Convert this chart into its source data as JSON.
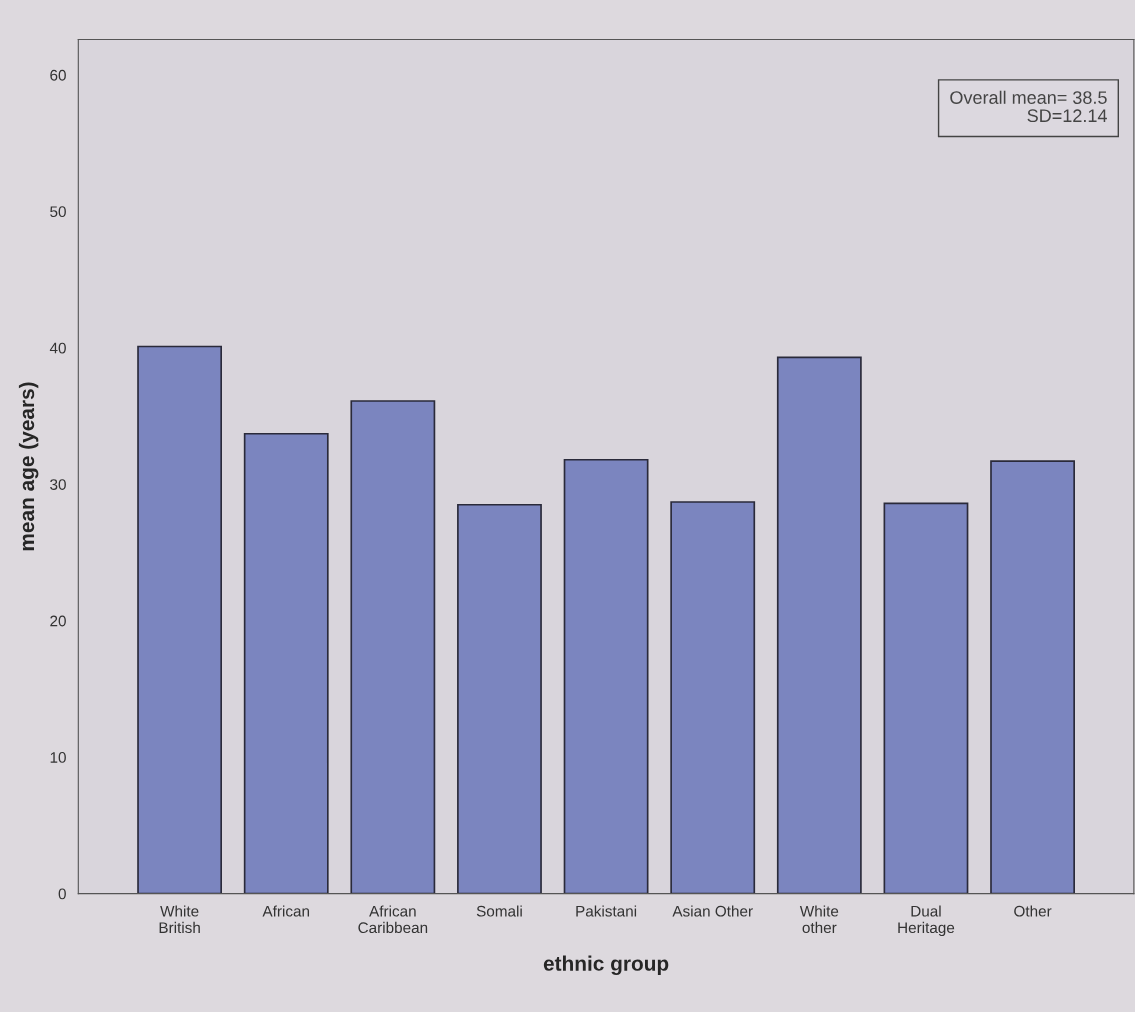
{
  "chart_data": {
    "type": "bar",
    "xlabel": "ethnic group",
    "ylabel": "mean age (years)",
    "categories": [
      "White\nBritish",
      "African",
      "African\nCaribbean",
      "Somali",
      "Pakistani",
      "Asian Other",
      "White\nother",
      "Dual\nHeritage",
      "Other"
    ],
    "values": [
      40.1,
      33.7,
      36.1,
      28.5,
      31.8,
      28.7,
      39.3,
      28.6,
      31.7
    ],
    "color": "#7b85bf",
    "ylim": [
      0,
      62.6
    ],
    "yticks": [
      0,
      10,
      20,
      30,
      40,
      50,
      60
    ],
    "grid": false,
    "annotations": [
      "Overall mean= 38.5\nSD=12.14"
    ]
  }
}
